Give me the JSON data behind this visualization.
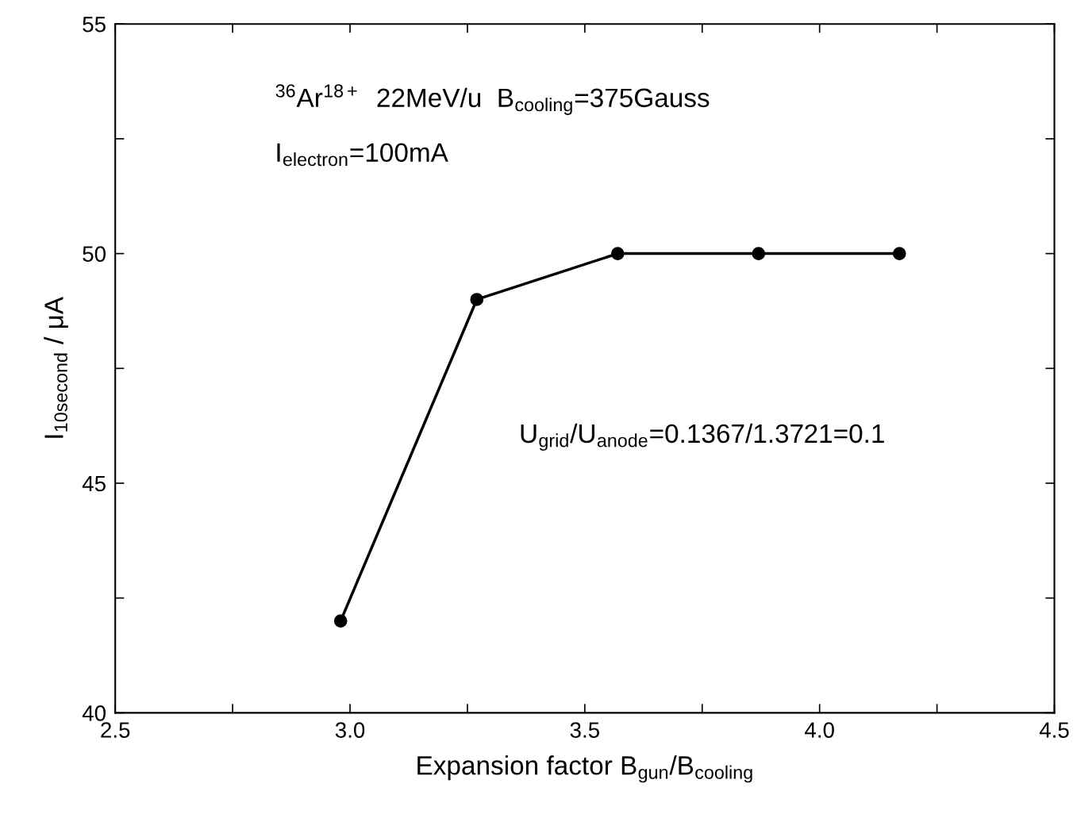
{
  "chart_data": {
    "type": "line",
    "xlabel": "Expansion factor B$_{gun}$/B$_{cooling}$",
    "ylabel": "I$_{10second}$ / μA",
    "x": [
      2.98,
      3.27,
      3.57,
      3.87,
      4.17
    ],
    "series": [
      {
        "color": "#000000",
        "values": [
          42,
          49,
          50,
          50,
          50
        ]
      }
    ],
    "xlim": [
      2.5,
      4.5
    ],
    "ylim": [
      40,
      55
    ],
    "xticks": [
      2.5,
      {
        "value": 2.75,
        "label": null
      },
      {
        "value": 3,
        "label": "3.0"
      },
      {
        "value": 3.25,
        "label": null
      },
      3.5,
      {
        "value": 3.75,
        "label": null
      },
      {
        "value": 4,
        "label": "4.0"
      },
      {
        "value": 4.25,
        "label": null
      },
      4.5
    ],
    "yticks": [
      40,
      {
        "value": 42.5,
        "label": null
      },
      45,
      {
        "value": 47.5,
        "label": null
      },
      50,
      {
        "value": 52.5,
        "label": null
      },
      55
    ],
    "marker": "circle",
    "line_style": "solid",
    "grid": false,
    "legend": false,
    "annotations": [
      "$^{36}$Ar$^{18+}$  22MeV/u  B$_{cooling}$=375Gauss",
      "I$_{electron}$=100mA",
      "U$_{grid}$/U$_{anode}$=0.1367/1.3721=0.1"
    ]
  }
}
